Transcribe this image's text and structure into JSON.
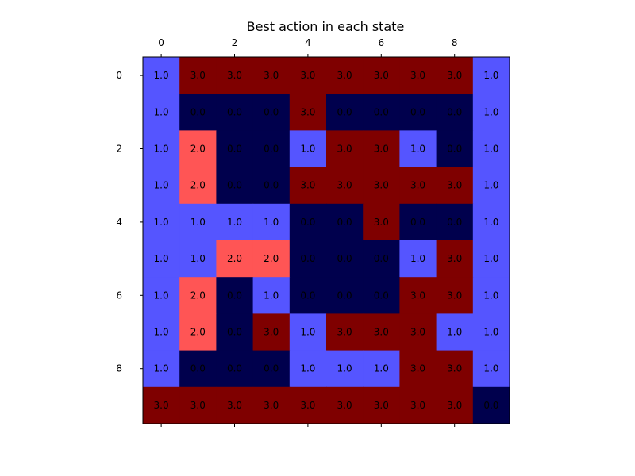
{
  "chart_data": {
    "type": "heatmap",
    "title": "Best action in each state",
    "xlabel": "",
    "ylabel": "",
    "x_ticks": [
      0,
      2,
      4,
      6,
      8
    ],
    "y_ticks": [
      0,
      2,
      4,
      6,
      8
    ],
    "x_tick_position": "top-and-bottom",
    "grid": false,
    "colormap": {
      "0.0": "#00004d",
      "1.0": "#5555ff",
      "2.0": "#ff5555",
      "3.0": "#7f0000"
    },
    "values": [
      [
        1.0,
        3.0,
        3.0,
        3.0,
        3.0,
        3.0,
        3.0,
        3.0,
        3.0,
        1.0
      ],
      [
        1.0,
        0.0,
        0.0,
        0.0,
        3.0,
        0.0,
        0.0,
        0.0,
        0.0,
        1.0
      ],
      [
        1.0,
        2.0,
        0.0,
        0.0,
        1.0,
        3.0,
        3.0,
        1.0,
        0.0,
        1.0
      ],
      [
        1.0,
        2.0,
        0.0,
        0.0,
        3.0,
        3.0,
        3.0,
        3.0,
        3.0,
        1.0
      ],
      [
        1.0,
        1.0,
        1.0,
        1.0,
        0.0,
        0.0,
        3.0,
        0.0,
        0.0,
        1.0
      ],
      [
        1.0,
        1.0,
        2.0,
        2.0,
        0.0,
        0.0,
        0.0,
        1.0,
        3.0,
        1.0
      ],
      [
        1.0,
        2.0,
        0.0,
        1.0,
        0.0,
        0.0,
        0.0,
        3.0,
        3.0,
        1.0
      ],
      [
        1.0,
        2.0,
        0.0,
        3.0,
        1.0,
        3.0,
        3.0,
        3.0,
        1.0,
        1.0
      ],
      [
        1.0,
        0.0,
        0.0,
        0.0,
        1.0,
        1.0,
        1.0,
        3.0,
        3.0,
        1.0
      ],
      [
        3.0,
        3.0,
        3.0,
        3.0,
        3.0,
        3.0,
        3.0,
        3.0,
        3.0,
        0.0
      ]
    ]
  }
}
